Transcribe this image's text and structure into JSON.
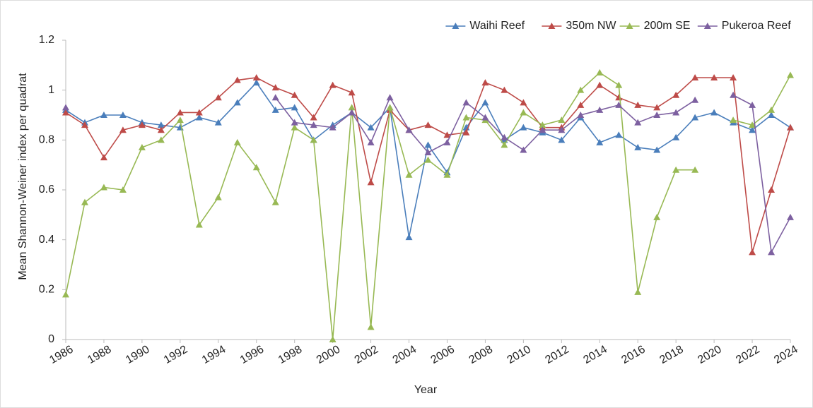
{
  "chart_data": {
    "type": "line",
    "x_label": "Year",
    "y_label": "Mean Shannon-Weiner index per quadrat",
    "x": [
      1986,
      1987,
      1988,
      1989,
      1990,
      1991,
      1992,
      1993,
      1994,
      1995,
      1996,
      1997,
      1998,
      1999,
      2000,
      2001,
      2002,
      2003,
      2004,
      2005,
      2006,
      2007,
      2008,
      2009,
      2010,
      2011,
      2012,
      2013,
      2014,
      2015,
      2016,
      2017,
      2018,
      2019,
      2020,
      2021,
      2022,
      2023,
      2024
    ],
    "series": [
      {
        "name": "Waihi Reef",
        "color": "#4a7ebb",
        "values": [
          0.92,
          0.87,
          0.9,
          0.9,
          0.87,
          0.86,
          0.85,
          0.89,
          0.87,
          0.95,
          1.03,
          0.92,
          0.93,
          0.8,
          0.86,
          0.91,
          0.85,
          0.93,
          0.41,
          0.78,
          0.67,
          0.85,
          0.95,
          0.8,
          0.85,
          0.83,
          0.8,
          0.89,
          0.79,
          0.82,
          0.77,
          0.76,
          0.81,
          0.89,
          0.91,
          0.87,
          0.84,
          0.9,
          0.85
        ]
      },
      {
        "name": "350m NW",
        "color": "#be4b48",
        "values": [
          0.91,
          0.86,
          0.73,
          0.84,
          0.86,
          0.84,
          0.91,
          0.91,
          0.97,
          1.04,
          1.05,
          1.01,
          0.98,
          0.89,
          1.02,
          0.99,
          0.63,
          0.92,
          0.84,
          0.86,
          0.82,
          0.83,
          1.03,
          1.0,
          0.95,
          0.85,
          0.85,
          0.94,
          1.02,
          0.97,
          0.94,
          0.93,
          0.98,
          1.05,
          1.05,
          1.05,
          0.35,
          0.6,
          0.85
        ]
      },
      {
        "name": "200m SE",
        "color": "#98b954",
        "values": [
          0.18,
          0.55,
          0.61,
          0.6,
          0.77,
          0.8,
          0.88,
          0.46,
          0.57,
          0.79,
          0.69,
          0.55,
          0.85,
          0.8,
          0,
          0.93,
          0.05,
          0.93,
          0.66,
          0.72,
          0.66,
          0.89,
          0.88,
          0.78,
          0.91,
          0.86,
          0.88,
          1.0,
          1.07,
          1.02,
          0.19,
          0.49,
          0.68,
          0.68,
          null,
          0.88,
          0.86,
          0.92,
          1.06
        ]
      },
      {
        "name": "Pukeroa Reef",
        "color": "#7d60a0",
        "values": [
          0.93,
          null,
          null,
          null,
          null,
          null,
          null,
          null,
          null,
          null,
          null,
          0.97,
          0.87,
          0.86,
          0.85,
          0.91,
          0.79,
          0.97,
          0.84,
          0.75,
          0.79,
          0.95,
          0.89,
          0.81,
          0.76,
          0.84,
          0.84,
          0.9,
          0.92,
          0.94,
          0.87,
          0.9,
          0.91,
          0.96,
          null,
          0.98,
          0.94,
          0.35,
          0.49
        ]
      }
    ],
    "xlim": [
      1986,
      2024
    ],
    "xticks": [
      1986,
      1988,
      1990,
      1992,
      1994,
      1996,
      1998,
      2000,
      2002,
      2004,
      2006,
      2008,
      2010,
      2012,
      2014,
      2016,
      2018,
      2020,
      2022,
      2024
    ],
    "ylim": [
      0,
      1.2
    ],
    "yticks": [
      0,
      0.2,
      0.4,
      0.6,
      0.8,
      1,
      1.2
    ],
    "grid": false,
    "legend": "top-right"
  }
}
